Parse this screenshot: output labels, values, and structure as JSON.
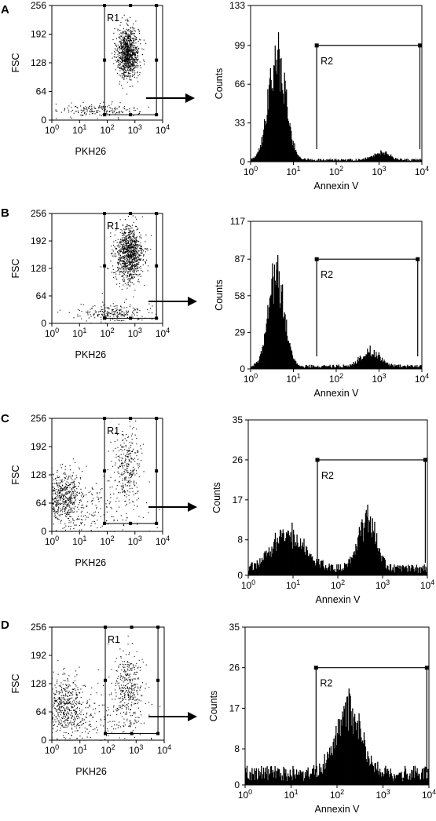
{
  "figure": {
    "panel_labels": [
      "A",
      "B",
      "C",
      "D"
    ]
  },
  "chart_data": [
    {
      "panel": "A",
      "type": "scatter",
      "xlabel": "PKH26",
      "ylabel": "FSC",
      "xscale": "log",
      "xlim": [
        1,
        10000
      ],
      "ylim": [
        0,
        256
      ],
      "xticks": [
        "10^0",
        "10^1",
        "10^2",
        "10^3",
        "10^4"
      ],
      "yticks": [
        "0",
        "64",
        "128",
        "192",
        "256"
      ],
      "gate": {
        "name": "R1",
        "x": [
          80,
          6000
        ],
        "y": [
          12,
          256
        ]
      },
      "populations": [
        {
          "name": "",
          "n": 1000,
          "cx_log": 2.75,
          "sx_log": 0.2,
          "cy": 150,
          "sy": 28
        },
        {
          "name": "",
          "n": 180,
          "cx_log": 1.7,
          "sx_log": 0.7,
          "cy": 22,
          "sy": 8
        }
      ]
    },
    {
      "panel": "A",
      "type": "area",
      "xlabel": "Annexin V",
      "ylabel": "Counts",
      "xscale": "log",
      "xlim": [
        1,
        10000
      ],
      "ylim": [
        0,
        133
      ],
      "xticks": [
        "10^0",
        "10^1",
        "10^2",
        "10^3",
        "10^4"
      ],
      "yticks": [
        "0",
        "33",
        "66",
        "99",
        "133"
      ],
      "marker": {
        "name": "R2",
        "x": [
          35,
          9000
        ],
        "y": 99
      },
      "peaks": [
        {
          "center_log": 0.62,
          "width_log": 0.2,
          "height": 85
        },
        {
          "center_log": 3.05,
          "width_log": 0.2,
          "height": 6
        }
      ],
      "baseline": 1.5
    },
    {
      "panel": "B",
      "type": "scatter",
      "xlabel": "PKH26",
      "ylabel": "FSC",
      "xscale": "log",
      "xlim": [
        1,
        10000
      ],
      "ylim": [
        0,
        256
      ],
      "xticks": [
        "10^0",
        "10^1",
        "10^2",
        "10^3",
        "10^4"
      ],
      "yticks": [
        "0",
        "64",
        "128",
        "192",
        "256"
      ],
      "gate": {
        "name": "R1",
        "x": [
          80,
          6000
        ],
        "y": [
          12,
          256
        ]
      },
      "populations": [
        {
          "name": "",
          "n": 1000,
          "cx_log": 2.8,
          "sx_log": 0.25,
          "cy": 160,
          "sy": 32
        },
        {
          "name": "",
          "n": 220,
          "cx_log": 2.2,
          "sx_log": 0.6,
          "cy": 25,
          "sy": 10
        }
      ]
    },
    {
      "panel": "B",
      "type": "area",
      "xlabel": "Annexin   V",
      "ylabel": "Counts",
      "xscale": "log",
      "xlim": [
        1,
        10000
      ],
      "ylim": [
        0,
        117
      ],
      "xticks": [
        "10^0",
        "10^1",
        "10^2",
        "10^3",
        "10^4"
      ],
      "yticks": [
        "0",
        "29",
        "58",
        "87",
        "117"
      ],
      "marker": {
        "name": "R2",
        "x": [
          35,
          8000
        ],
        "y": 87
      },
      "peaks": [
        {
          "center_log": 0.6,
          "width_log": 0.18,
          "height": 72
        },
        {
          "center_log": 2.8,
          "width_log": 0.22,
          "height": 12
        }
      ],
      "baseline": 2
    },
    {
      "panel": "C",
      "type": "scatter",
      "xlabel": "PKH26",
      "ylabel": "FSC",
      "xscale": "log",
      "xlim": [
        1,
        10000
      ],
      "ylim": [
        0,
        256
      ],
      "xticks": [
        "10^0",
        "10^1",
        "10^2",
        "10^3",
        "10^4"
      ],
      "yticks": [
        "0",
        "64",
        "128",
        "192",
        "256"
      ],
      "gate": {
        "name": "R1",
        "x": [
          80,
          6000
        ],
        "y": [
          18,
          256
        ]
      },
      "populations": [
        {
          "name": "",
          "n": 500,
          "cx_log": 0.4,
          "sx_log": 0.3,
          "cy": 80,
          "sy": 28
        },
        {
          "name": "",
          "n": 280,
          "cx_log": 2.75,
          "sx_log": 0.25,
          "cy": 150,
          "sy": 38
        },
        {
          "name": "",
          "n": 250,
          "cx_log": 1.5,
          "sx_log": 0.9,
          "cy": 45,
          "sy": 40
        }
      ]
    },
    {
      "panel": "C",
      "type": "area",
      "xlabel": "Annexin   V",
      "ylabel": "Counts",
      "xscale": "log",
      "xlim": [
        1,
        10000
      ],
      "ylim": [
        0,
        35
      ],
      "xticks": [
        "10^0",
        "10^1",
        "10^2",
        "10^3",
        "10^4"
      ],
      "yticks": [
        "0",
        "8",
        "17",
        "26",
        "35"
      ],
      "marker": {
        "name": "R2",
        "x": [
          35,
          9000
        ],
        "y": 26
      },
      "peaks": [
        {
          "center_log": 0.9,
          "width_log": 0.35,
          "height": 8
        },
        {
          "center_log": 2.65,
          "width_log": 0.2,
          "height": 11
        }
      ],
      "baseline": 1.5
    },
    {
      "panel": "D",
      "type": "scatter",
      "xlabel": "PKH26",
      "ylabel": "FSC",
      "xscale": "log",
      "xlim": [
        1,
        10000
      ],
      "ylim": [
        0,
        256
      ],
      "xticks": [
        "10^0",
        "10^1",
        "10^2",
        "10^3",
        "10^4"
      ],
      "yticks": [
        "0",
        "64",
        "128",
        "192",
        "256"
      ],
      "gate": {
        "name": "R1",
        "x": [
          80,
          6000
        ],
        "y": [
          15,
          256
        ]
      },
      "populations": [
        {
          "name": "",
          "n": 450,
          "cx_log": 0.45,
          "sx_log": 0.35,
          "cy": 80,
          "sy": 32
        },
        {
          "name": "",
          "n": 330,
          "cx_log": 2.75,
          "sx_log": 0.25,
          "cy": 115,
          "sy": 42
        },
        {
          "name": "",
          "n": 250,
          "cx_log": 1.5,
          "sx_log": 0.9,
          "cy": 40,
          "sy": 40
        }
      ]
    },
    {
      "panel": "D",
      "type": "area",
      "xlabel": "Annexin V",
      "ylabel": "Counts",
      "xscale": "log",
      "xlim": [
        1,
        10000
      ],
      "ylim": [
        0,
        35
      ],
      "xticks": [
        "10^0",
        "10^1",
        "10^2",
        "10^3",
        "10^4"
      ],
      "yticks": [
        "0",
        "8",
        "17",
        "26",
        "35"
      ],
      "marker": {
        "name": "R2",
        "x": [
          35,
          9000
        ],
        "y": 26
      },
      "peaks": [
        {
          "center_log": 2.25,
          "width_log": 0.28,
          "height": 14
        }
      ],
      "baseline": 2.5
    }
  ]
}
